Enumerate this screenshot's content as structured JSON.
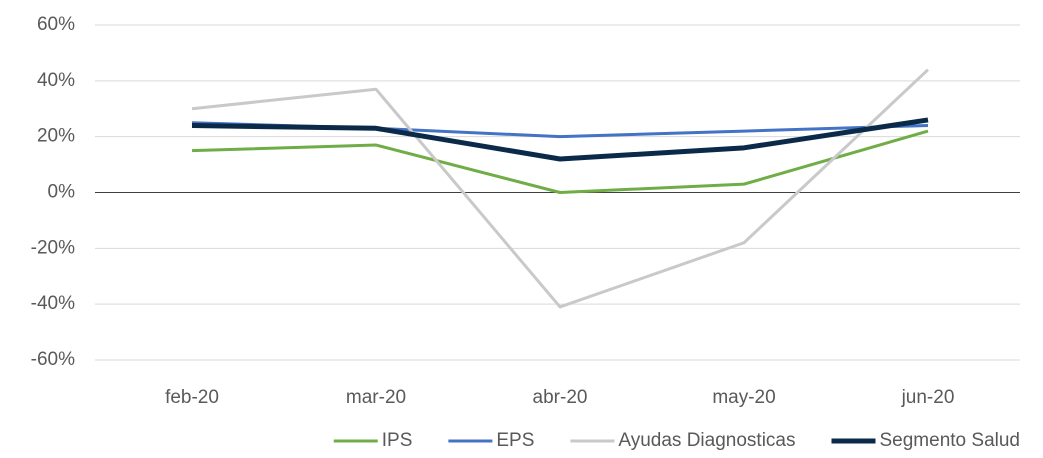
{
  "chart_data": {
    "type": "line",
    "categories": [
      "feb-20",
      "mar-20",
      "abr-20",
      "may-20",
      "jun-20"
    ],
    "series": [
      {
        "name": "IPS",
        "color": "#70ad47",
        "values": [
          15,
          17,
          0,
          3,
          22
        ]
      },
      {
        "name": "EPS",
        "color": "#4472c4",
        "values": [
          25,
          23,
          20,
          22,
          24
        ]
      },
      {
        "name": "Ayudas Diagnosticas",
        "color": "#c9c9c9",
        "values": [
          30,
          37,
          -41,
          -18,
          44
        ]
      },
      {
        "name": "Segmento Salud",
        "color": "#0b2a4a",
        "values": [
          24,
          23,
          12,
          16,
          26
        ]
      }
    ],
    "ylim": [
      -60,
      60
    ],
    "yticks": [
      {
        "value": -60,
        "label": "-60%"
      },
      {
        "value": -40,
        "label": "-40%"
      },
      {
        "value": -20,
        "label": "-20%"
      },
      {
        "value": 0,
        "label": "0%"
      },
      {
        "value": 20,
        "label": "20%"
      },
      {
        "value": 40,
        "label": "40%"
      },
      {
        "value": 60,
        "label": "60%"
      }
    ],
    "grid": true,
    "legend": "bottom"
  }
}
